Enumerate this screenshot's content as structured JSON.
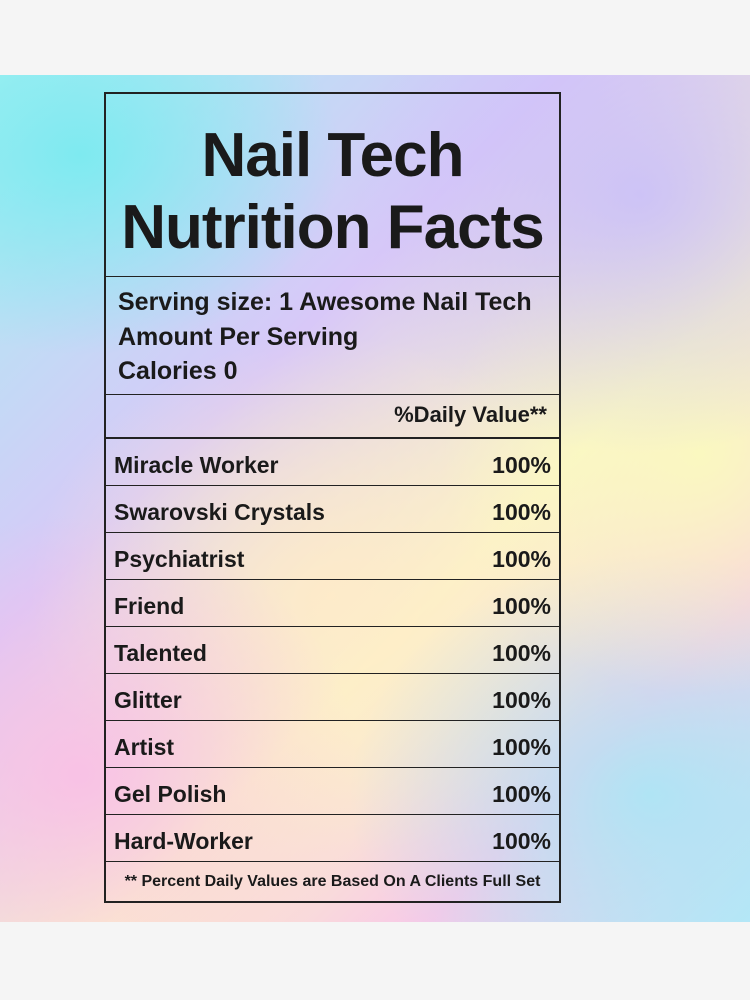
{
  "label": {
    "title": [
      "Nail Tech",
      "Nutrition Facts"
    ],
    "serving": [
      "Serving size: 1 Awesome Nail Tech",
      "Amount Per Serving",
      "Calories 0"
    ],
    "daily_value_header": "%Daily Value**",
    "rows": [
      [
        "Miracle Worker",
        "100%"
      ],
      [
        "Swarovski Crystals",
        "100%"
      ],
      [
        "Psychiatrist",
        "100%"
      ],
      [
        "Friend",
        "100%"
      ],
      [
        "Talented",
        "100%"
      ],
      [
        "Glitter",
        "100%"
      ],
      [
        "Artist",
        "100%"
      ],
      [
        "Gel Polish",
        "100%"
      ],
      [
        "Hard-Worker",
        "100%"
      ]
    ],
    "footnote": "** Percent Daily Values are Based On A Clients Full Set"
  }
}
